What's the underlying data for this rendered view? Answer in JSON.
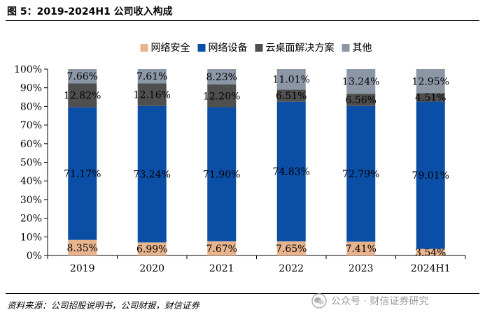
{
  "figure": {
    "title": "图 5：2019-2024H1 公司收入构成",
    "source": "资料来源：公司招股说明书，公司财报，财信证券",
    "watermark": "公众号 · 财信证券研究"
  },
  "chart_data": {
    "type": "bar",
    "stacked": true,
    "categories": [
      "2019",
      "2020",
      "2021",
      "2022",
      "2023",
      "2024H1"
    ],
    "series": [
      {
        "name": "网络安全",
        "color": "#E8B48E",
        "values": [
          8.35,
          6.99,
          7.67,
          7.65,
          7.41,
          3.54
        ],
        "labels": [
          "8.35%",
          "6.99%",
          "7.67%",
          "7.65%",
          "7.41%",
          "3.54%"
        ]
      },
      {
        "name": "网络设备",
        "color": "#0B4EA6",
        "values": [
          71.17,
          73.24,
          71.9,
          74.83,
          72.79,
          79.01
        ],
        "labels": [
          "71.17%",
          "73.24%",
          "71.90%",
          "74.83%",
          "72.79%",
          "79.01%"
        ]
      },
      {
        "name": "云桌面解决方案",
        "color": "#4F4F4F",
        "values": [
          12.82,
          12.16,
          12.2,
          6.51,
          6.56,
          4.51
        ],
        "labels": [
          "12.82%",
          "12.16%",
          "12.20%",
          "6.51%",
          "6.56%",
          "4.51%"
        ]
      },
      {
        "name": "其他",
        "color": "#8C97A6",
        "values": [
          7.66,
          7.61,
          8.23,
          11.01,
          13.24,
          12.95
        ],
        "labels": [
          "7.66%",
          "7.61%",
          "8.23%",
          "11.01%",
          "13.24%",
          "12.95%"
        ]
      }
    ],
    "ylim": [
      0,
      100
    ],
    "yticks": [
      "0%",
      "10%",
      "20%",
      "30%",
      "40%",
      "50%",
      "60%",
      "70%",
      "80%",
      "90%",
      "100%"
    ],
    "legend_position": "top",
    "grid": false
  }
}
